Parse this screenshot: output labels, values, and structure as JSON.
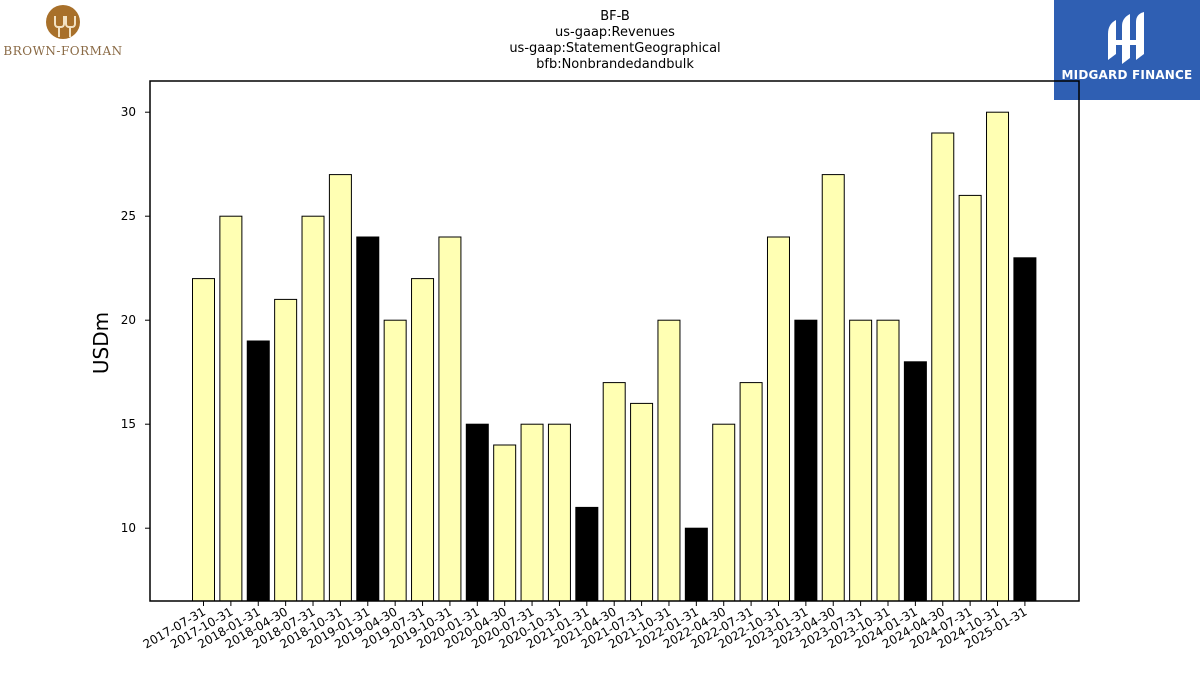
{
  "logos": {
    "left_text": "BROWN-FORMAN",
    "right_text": "MIDGARD FINANCE"
  },
  "colors": {
    "bar_light": "#ffffb3",
    "bar_dark": "#000000",
    "logo_left": "#a8702a",
    "logo_right": "#2f5fb3"
  },
  "chart_data": {
    "type": "bar",
    "title_lines": [
      "BF-B",
      "us-gaap:Revenues",
      "us-gaap:StatementGeographical",
      "bfb:Nonbrandedandbulk"
    ],
    "ylabel": "USDm",
    "xlabel": "",
    "ylim": [
      6.5,
      31.5
    ],
    "yticks": [
      10,
      15,
      20,
      25,
      30
    ],
    "grid": false,
    "categories": [
      "2017-07-31",
      "2017-10-31",
      "2018-01-31",
      "2018-04-30",
      "2018-07-31",
      "2018-10-31",
      "2019-01-31",
      "2019-04-30",
      "2019-07-31",
      "2019-10-31",
      "2020-01-31",
      "2020-04-30",
      "2020-07-31",
      "2020-10-31",
      "2021-01-31",
      "2021-04-30",
      "2021-07-31",
      "2021-10-31",
      "2022-01-31",
      "2022-04-30",
      "2022-07-31",
      "2022-10-31",
      "2023-01-31",
      "2023-04-30",
      "2023-07-31",
      "2023-10-31",
      "2024-01-31",
      "2024-04-30",
      "2024-07-31",
      "2024-10-31",
      "2025-01-31"
    ],
    "values": [
      22,
      25,
      19,
      21,
      25,
      27,
      24,
      20,
      22,
      24,
      15,
      14,
      15,
      15,
      11,
      17,
      16,
      20,
      10,
      15,
      17,
      24,
      20,
      27,
      20,
      20,
      18,
      29,
      26,
      30,
      23
    ],
    "highlight": [
      false,
      false,
      true,
      false,
      false,
      false,
      true,
      false,
      false,
      false,
      true,
      false,
      false,
      false,
      true,
      false,
      false,
      false,
      true,
      false,
      false,
      false,
      true,
      false,
      false,
      false,
      true,
      false,
      false,
      false,
      true
    ]
  }
}
